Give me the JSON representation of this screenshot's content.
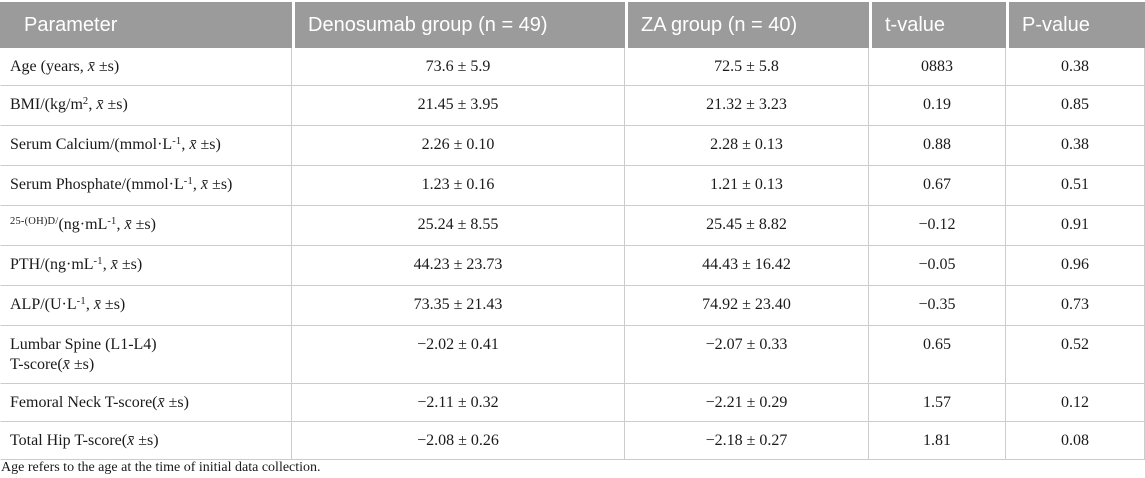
{
  "table": {
    "columns": [
      {
        "label": "Parameter"
      },
      {
        "label": "Denosumab group (n = 49)"
      },
      {
        "label": "ZA group (n = 40)"
      },
      {
        "label": "t-value"
      },
      {
        "label": "P-value"
      }
    ],
    "rows": [
      {
        "parameter_segments": [
          {
            "t": "Age (years, "
          },
          {
            "t": "x̄",
            "it": true
          },
          {
            "t": " ±s)"
          }
        ],
        "denosumab": "73.6 ± 5.9",
        "za": "72.5 ± 5.8",
        "t_value": "0883",
        "p_value": "0.38"
      },
      {
        "parameter_segments": [
          {
            "t": "BMI/(kg/m"
          },
          {
            "t": "2",
            "sup": true
          },
          {
            "t": ", "
          },
          {
            "t": "x̄",
            "it": true
          },
          {
            "t": " ±s)"
          }
        ],
        "denosumab": "21.45 ± 3.95",
        "za": "21.32 ± 3.23",
        "t_value": "0.19",
        "p_value": "0.85"
      },
      {
        "parameter_segments": [
          {
            "t": "Serum Calcium/(mmol·L"
          },
          {
            "t": "-1",
            "sup": true
          },
          {
            "t": ", "
          },
          {
            "t": "x̄",
            "it": true
          },
          {
            "t": " ±s)"
          }
        ],
        "denosumab": "2.26 ± 0.10",
        "za": "2.28 ± 0.13",
        "t_value": "0.88",
        "p_value": "0.38"
      },
      {
        "parameter_segments": [
          {
            "t": "Serum Phosphate/(mmol·L"
          },
          {
            "t": "-1",
            "sup": true
          },
          {
            "t": ", "
          },
          {
            "t": "x̄",
            "it": true
          },
          {
            "t": " ±s)"
          }
        ],
        "denosumab": "1.23 ± 0.16",
        "za": "1.21 ± 0.13",
        "t_value": "0.67",
        "p_value": "0.51"
      },
      {
        "parameter_segments": [
          {
            "t": "25-(OH)D/",
            "sup": true
          },
          {
            "t": "(ng·mL"
          },
          {
            "t": "-1",
            "sup": true
          },
          {
            "t": ", "
          },
          {
            "t": "x̄",
            "it": true
          },
          {
            "t": " ±s)"
          }
        ],
        "denosumab": "25.24 ± 8.55",
        "za": "25.45 ± 8.82",
        "t_value": "−0.12",
        "p_value": "0.91"
      },
      {
        "parameter_segments": [
          {
            "t": "PTH/(ng·mL"
          },
          {
            "t": "-1",
            "sup": true
          },
          {
            "t": ", "
          },
          {
            "t": "x̄",
            "it": true
          },
          {
            "t": " ±s)"
          }
        ],
        "denosumab": "44.23 ± 23.73",
        "za": "44.43 ± 16.42",
        "t_value": "−0.05",
        "p_value": "0.96"
      },
      {
        "parameter_segments": [
          {
            "t": "ALP/(U·L"
          },
          {
            "t": "-1",
            "sup": true
          },
          {
            "t": ", "
          },
          {
            "t": "x̄",
            "it": true
          },
          {
            "t": " ±s)"
          }
        ],
        "denosumab": "73.35 ± 21.43",
        "za": "74.92 ± 23.40",
        "t_value": "−0.35",
        "p_value": "0.73"
      },
      {
        "parameter_segments": [
          {
            "t": "Lumbar Spine (L1-L4)"
          },
          {
            "br": true
          },
          {
            "t": "T-score("
          },
          {
            "t": "x̄",
            "it": true
          },
          {
            "t": " ±s)"
          }
        ],
        "denosumab": "−2.02 ± 0.41",
        "za": "−2.07 ± 0.33",
        "t_value": "0.65",
        "p_value": "0.52"
      },
      {
        "parameter_segments": [
          {
            "t": "Femoral Neck T-score("
          },
          {
            "t": "x̄",
            "it": true
          },
          {
            "t": " ±s)"
          }
        ],
        "denosumab": "−2.11 ± 0.32",
        "za": "−2.21 ± 0.29",
        "t_value": "1.57",
        "p_value": "0.12"
      },
      {
        "parameter_segments": [
          {
            "t": "Total Hip T-score("
          },
          {
            "t": "x̄",
            "it": true
          },
          {
            "t": " ±s)"
          }
        ],
        "denosumab": "−2.08 ± 0.26",
        "za": "−2.18 ± 0.27",
        "t_value": "1.81",
        "p_value": "0.08"
      }
    ]
  },
  "footnote": "Age refers to the age at the time of initial data collection.",
  "colors": {
    "header_bg": "#9b9b9b",
    "header_text": "#ffffff",
    "border": "#cccccc",
    "body_text": "#1a1a1a"
  }
}
